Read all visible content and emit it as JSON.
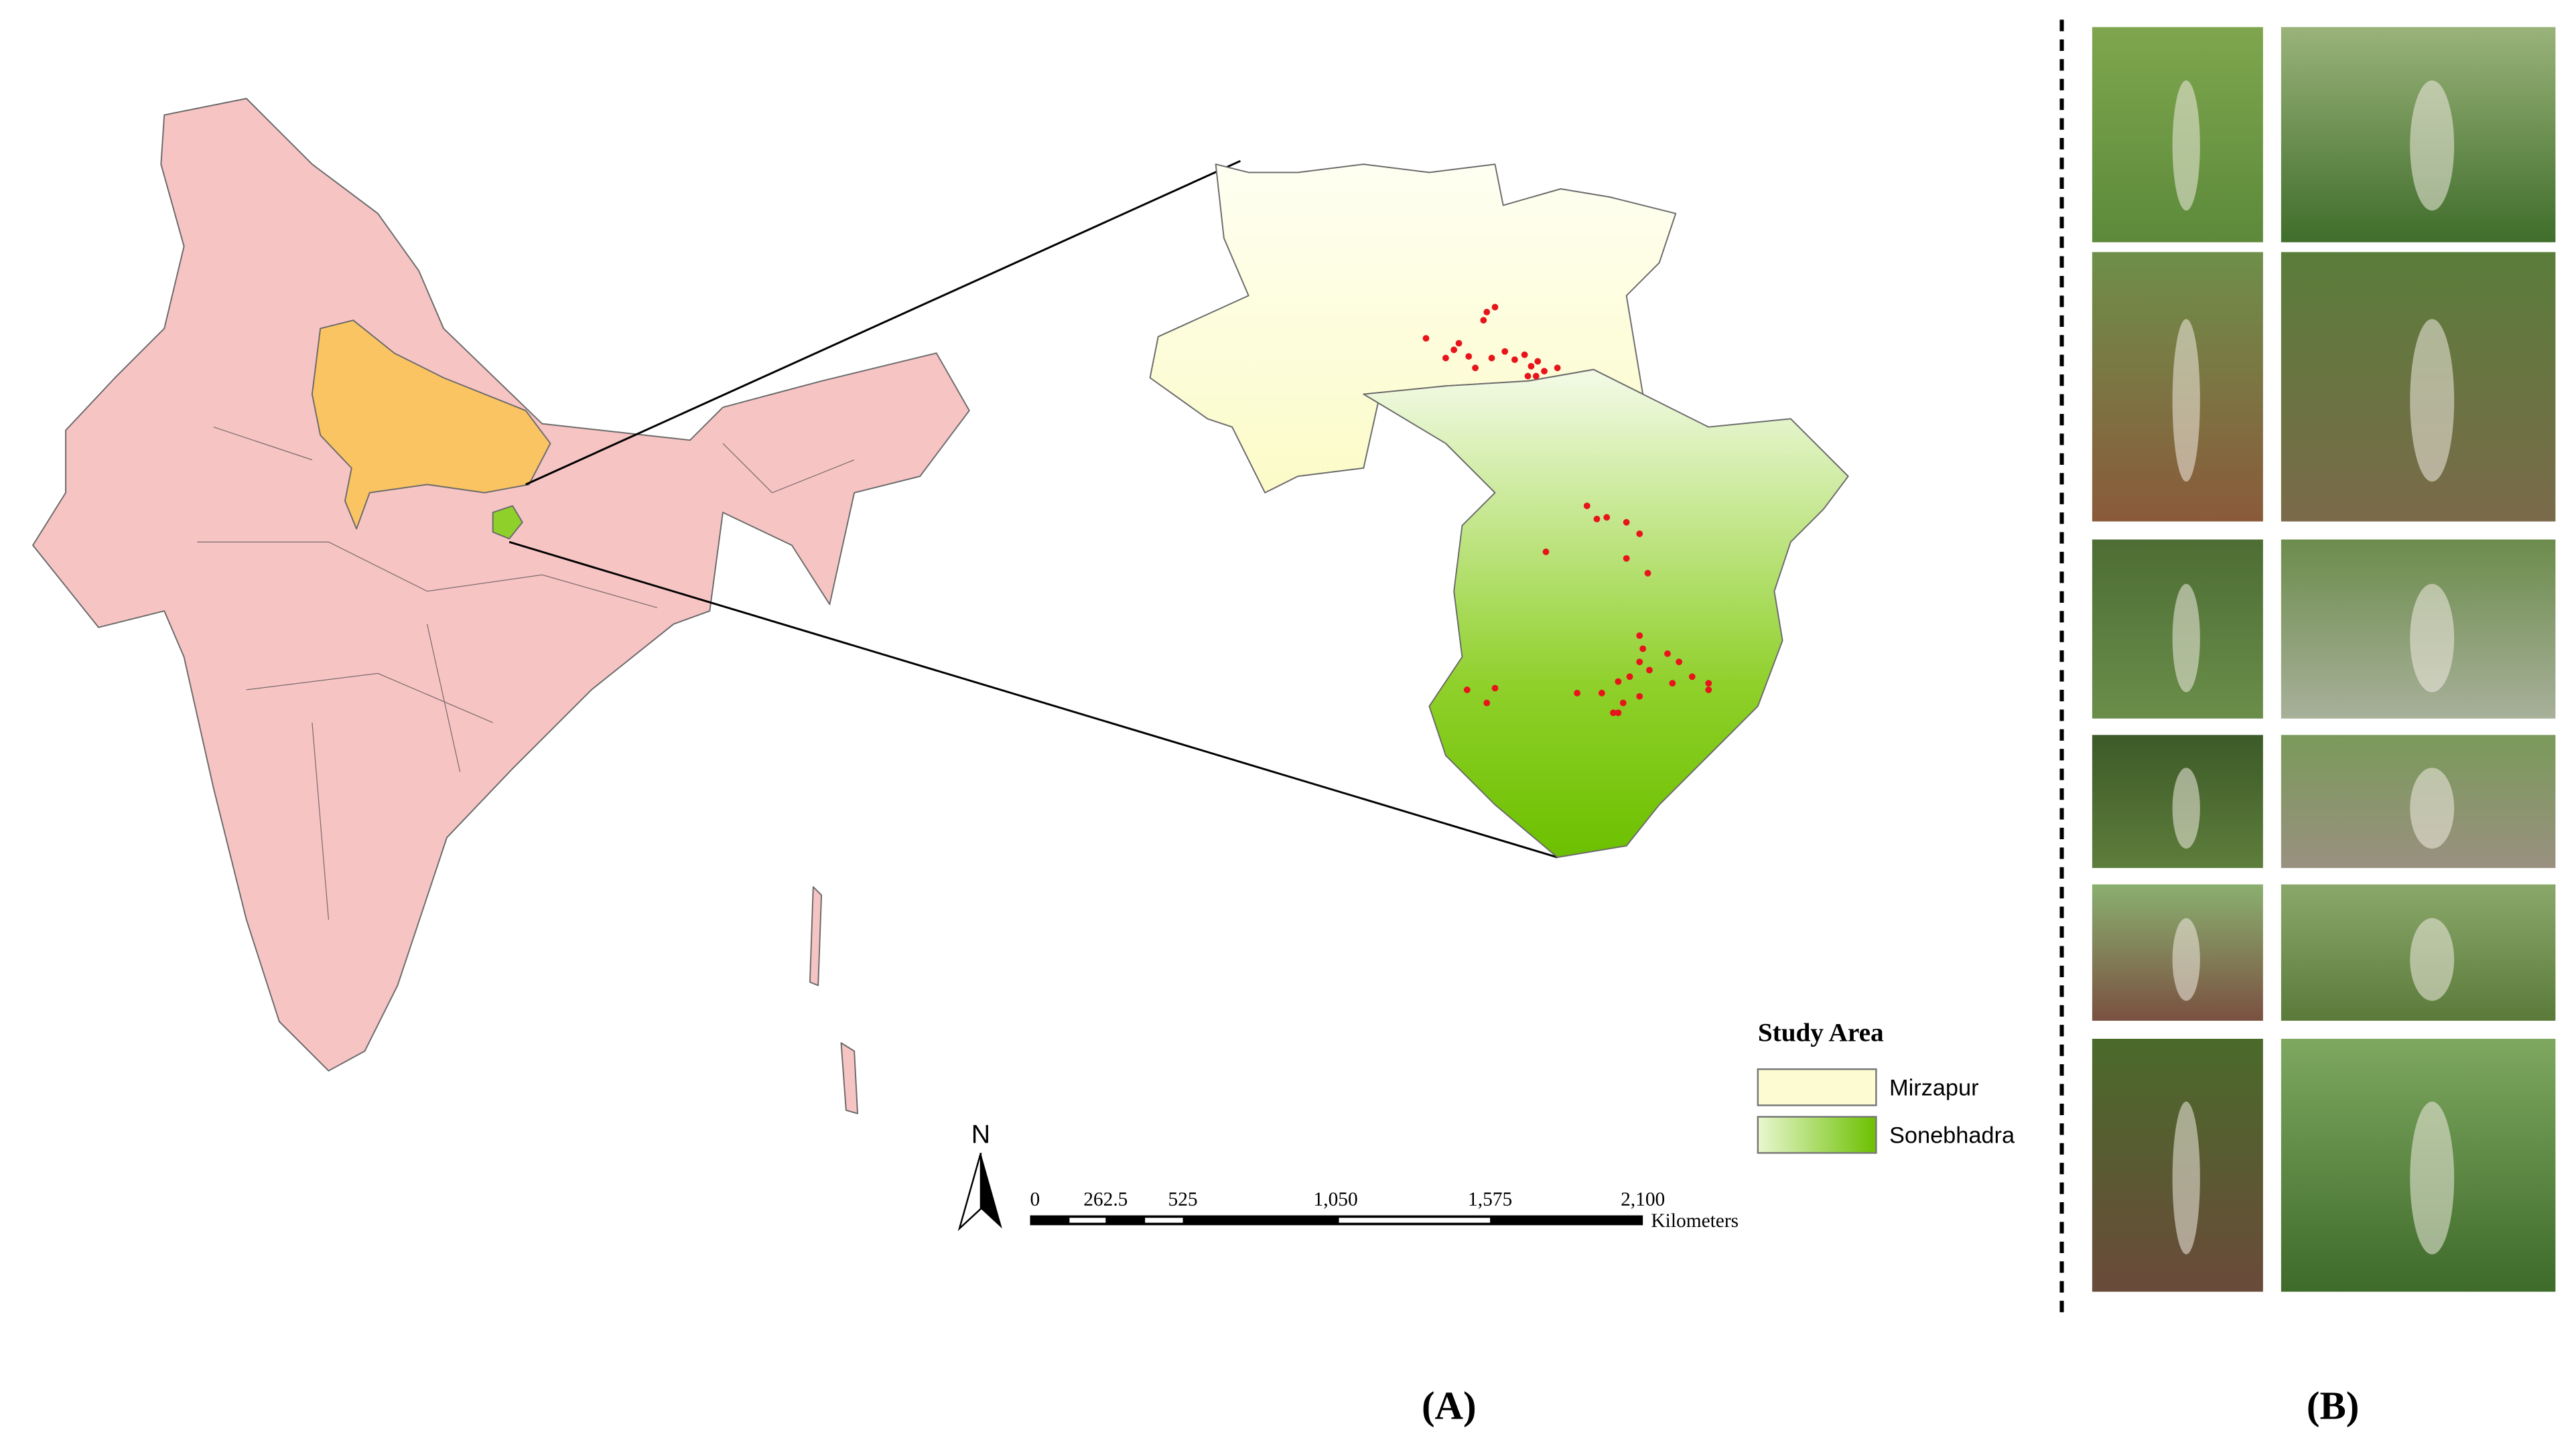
{
  "legend": {
    "title": "Study Area",
    "items": [
      {
        "label": "Mirzapur"
      },
      {
        "label": "Sonebhadra"
      }
    ]
  },
  "north_arrow": "N",
  "scale_bar": {
    "labels": [
      "0",
      "262.5",
      "525",
      "1,050",
      "1,575",
      "2,100"
    ],
    "unit": "Kilometers"
  },
  "panels": [
    "(A)",
    "(B)"
  ]
}
